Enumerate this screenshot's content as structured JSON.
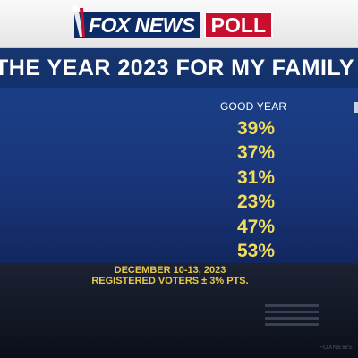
{
  "logo": {
    "brand": "FOX NEWS",
    "suffix": "POLL"
  },
  "title": "THE YEAR 2023 FOR MY FAMILY",
  "column_header": "GOOD YEAR",
  "values": [
    "39%",
    "37%",
    "31%",
    "23%",
    "47%",
    "53%"
  ],
  "footnote": {
    "line1": "DECEMBER 10-13, 2023",
    "line2": "REGISTERED VOTERS ± 3% PTS."
  },
  "watermark": "FOXNEWS",
  "colors": {
    "brand_blue": "#0d2b66",
    "poll_red": "#c8102e",
    "panel_blue": "#1a3f86",
    "value_yellow": "#f2dc5a"
  }
}
